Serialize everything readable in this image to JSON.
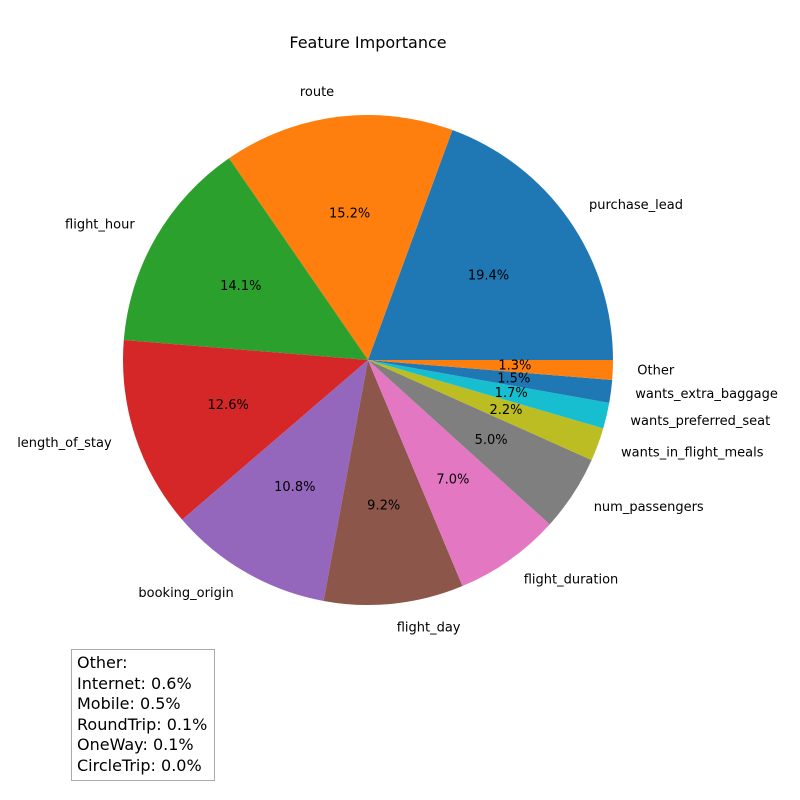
{
  "chart_data": {
    "type": "pie",
    "title": "Feature Importance",
    "start_angle_deg": 0,
    "direction": "counterclockwise",
    "slices": [
      {
        "label": "purchase_lead",
        "value": 19.4,
        "pct_label": "19.4%",
        "color": "#1f77b4"
      },
      {
        "label": "route",
        "value": 15.2,
        "pct_label": "15.2%",
        "color": "#ff7f0e"
      },
      {
        "label": "flight_hour",
        "value": 14.1,
        "pct_label": "14.1%",
        "color": "#2ca02c"
      },
      {
        "label": "length_of_stay",
        "value": 12.6,
        "pct_label": "12.6%",
        "color": "#d62728"
      },
      {
        "label": "booking_origin",
        "value": 10.8,
        "pct_label": "10.8%",
        "color": "#9467bd"
      },
      {
        "label": "flight_day",
        "value": 9.2,
        "pct_label": "9.2%",
        "color": "#8c564b"
      },
      {
        "label": "flight_duration",
        "value": 7.0,
        "pct_label": "7.0%",
        "color": "#e377c2"
      },
      {
        "label": "num_passengers",
        "value": 5.0,
        "pct_label": "5.0%",
        "color": "#7f7f7f"
      },
      {
        "label": "wants_in_flight_meals",
        "value": 2.2,
        "pct_label": "2.2%",
        "color": "#bcbd22"
      },
      {
        "label": "wants_preferred_seat",
        "value": 1.7,
        "pct_label": "1.7%",
        "color": "#17becf"
      },
      {
        "label": "wants_extra_baggage",
        "value": 1.5,
        "pct_label": "1.5%",
        "color": "#1f77b4"
      },
      {
        "label": "Other",
        "value": 1.3,
        "pct_label": "1.3%",
        "color": "#ff7f0e"
      }
    ],
    "annotation": {
      "title": "Other:",
      "items": [
        {
          "label": "Internet",
          "value": 0.6,
          "text": "Internet: 0.6%"
        },
        {
          "label": "Mobile",
          "value": 0.5,
          "text": "Mobile: 0.5%"
        },
        {
          "label": "RoundTrip",
          "value": 0.1,
          "text": "RoundTrip: 0.1%"
        },
        {
          "label": "OneWay",
          "value": 0.1,
          "text": "OneWay: 0.1%"
        },
        {
          "label": "CircleTrip",
          "value": 0.0,
          "text": "CircleTrip: 0.0%"
        }
      ]
    }
  }
}
